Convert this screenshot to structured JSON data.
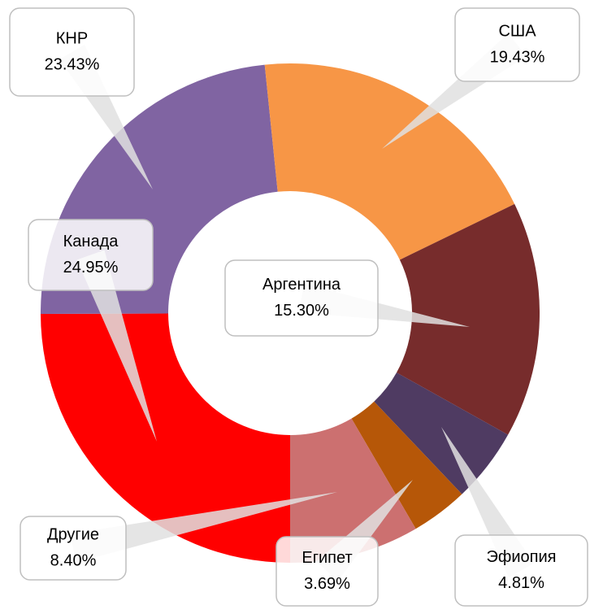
{
  "chart_data": {
    "type": "donut",
    "categories": [
      "Канада",
      "КНР",
      "США",
      "Аргентина",
      "Эфиопия",
      "Египет",
      "Другие"
    ],
    "values": [
      24.95,
      23.43,
      19.43,
      15.3,
      4.81,
      3.69,
      8.4
    ],
    "value_labels": [
      "24.95%",
      "23.43%",
      "19.43%",
      "15.30%",
      "4.81%",
      "3.69%",
      "8.40%"
    ],
    "colors": [
      "#ff0000",
      "#8064a2",
      "#f79646",
      "#772c2c",
      "#4f3b62",
      "#b65708",
      "#cc7070"
    ]
  }
}
